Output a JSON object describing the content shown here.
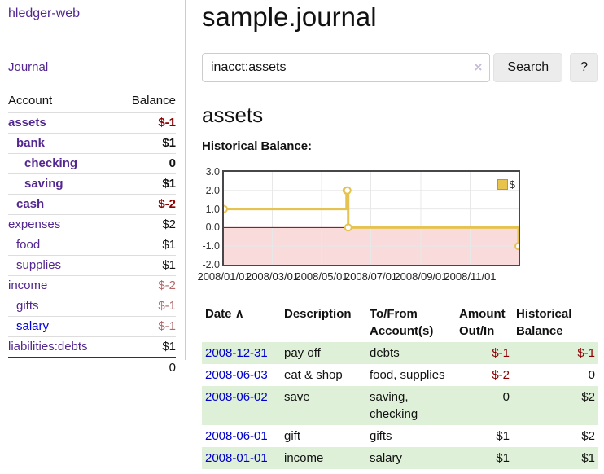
{
  "sidebar": {
    "brand": "hledger-web",
    "nav": [
      {
        "label": "Journal"
      }
    ],
    "accounts_table": {
      "headers": [
        "Account",
        "Balance"
      ],
      "rows": [
        {
          "name": "assets",
          "indent": 0,
          "bold": true,
          "balance": "$-1"
        },
        {
          "name": "bank",
          "indent": 1,
          "bold": true,
          "balance": "$1"
        },
        {
          "name": "checking",
          "indent": 2,
          "bold": true,
          "balance": "0"
        },
        {
          "name": "saving",
          "indent": 2,
          "bold": true,
          "balance": "$1"
        },
        {
          "name": "cash",
          "indent": 1,
          "bold": true,
          "balance": "$-2"
        },
        {
          "name": "expenses",
          "indent": 0,
          "bold": false,
          "balance": "$2"
        },
        {
          "name": "food",
          "indent": 1,
          "bold": false,
          "balance": "$1"
        },
        {
          "name": "supplies",
          "indent": 1,
          "bold": false,
          "balance": "$1"
        },
        {
          "name": "income",
          "indent": 0,
          "bold": false,
          "balance": "$-2"
        },
        {
          "name": "gifts",
          "indent": 1,
          "bold": false,
          "balance": "$-1"
        },
        {
          "name": "salary",
          "indent": 1,
          "bold": false,
          "balance": "$-1",
          "unvisited": true
        },
        {
          "name": "liabilities:debts",
          "indent": 0,
          "bold": false,
          "balance": "$1"
        }
      ],
      "total": "0"
    }
  },
  "header": {
    "title": "sample.journal"
  },
  "search": {
    "value": "inacct:assets",
    "clear_icon": "×",
    "button": "Search",
    "help_button": "?"
  },
  "account_page": {
    "heading": "assets",
    "chart_label": "Historical Balance:"
  },
  "chart_data": {
    "type": "line",
    "title": "Historical Balance",
    "step": true,
    "series": [
      {
        "name": "$",
        "points": [
          {
            "date": "2008-01-01",
            "day": 0,
            "value": 1
          },
          {
            "date": "2008-06-01",
            "day": 152,
            "value": 2
          },
          {
            "date": "2008-06-02",
            "day": 153,
            "value": 2
          },
          {
            "date": "2008-06-03",
            "day": 154,
            "value": 0
          },
          {
            "date": "2008-12-31",
            "day": 365,
            "value": -1
          }
        ]
      }
    ],
    "ylim": [
      -2,
      3
    ],
    "yticks": [
      {
        "label": "3.0",
        "value": 3
      },
      {
        "label": "2.0",
        "value": 2
      },
      {
        "label": "1.0",
        "value": 1
      },
      {
        "label": "0.0",
        "value": 0
      },
      {
        "label": "-1.0",
        "value": -1
      },
      {
        "label": "-2.0",
        "value": -2
      }
    ],
    "xticks": [
      {
        "label": "2008/01/01",
        "day": 0
      },
      {
        "label": "2008/03/01",
        "day": 60
      },
      {
        "label": "2008/05/01",
        "day": 121
      },
      {
        "label": "2008/07/01",
        "day": 182
      },
      {
        "label": "2008/09/01",
        "day": 244
      },
      {
        "label": "2008/11/01",
        "day": 305
      }
    ],
    "x_span_days": 365,
    "grid": true,
    "legend": {
      "label": "$",
      "position": "top-right"
    },
    "colors": {
      "line": "#e6c351",
      "marker_fill": "#ffffff",
      "negative_fill": "#fadbdb",
      "zero_line": "#8b0000",
      "grid": "#e8e8e8"
    }
  },
  "register": {
    "headers": {
      "date": "Date",
      "date_sort_icon": "∧",
      "description": "Description",
      "accounts": "To/From Account(s)",
      "amount": "Amount Out/In",
      "balance": "Historical Balance"
    },
    "rows": [
      {
        "date": "2008-12-31",
        "description": "pay off",
        "accounts": "debts",
        "amount": "$-1",
        "balance": "$-1"
      },
      {
        "date": "2008-06-03",
        "description": "eat & shop",
        "accounts": "food, supplies",
        "amount": "$-2",
        "balance": "0"
      },
      {
        "date": "2008-06-02",
        "description": "save",
        "accounts": "saving, checking",
        "amount": "0",
        "balance": "$2"
      },
      {
        "date": "2008-06-01",
        "description": "gift",
        "accounts": "gifts",
        "amount": "$1",
        "balance": "$2"
      },
      {
        "date": "2008-01-01",
        "description": "income",
        "accounts": "salary",
        "amount": "$1",
        "balance": "$1"
      }
    ]
  },
  "colors": {
    "link_purple": "#53278f",
    "link_blue": "#0000e6",
    "negative_strong": "#8b0000",
    "negative_soft": "#b06868",
    "row_stripe_green": "#dff0d8",
    "date_link_blue": "#0000cd"
  }
}
